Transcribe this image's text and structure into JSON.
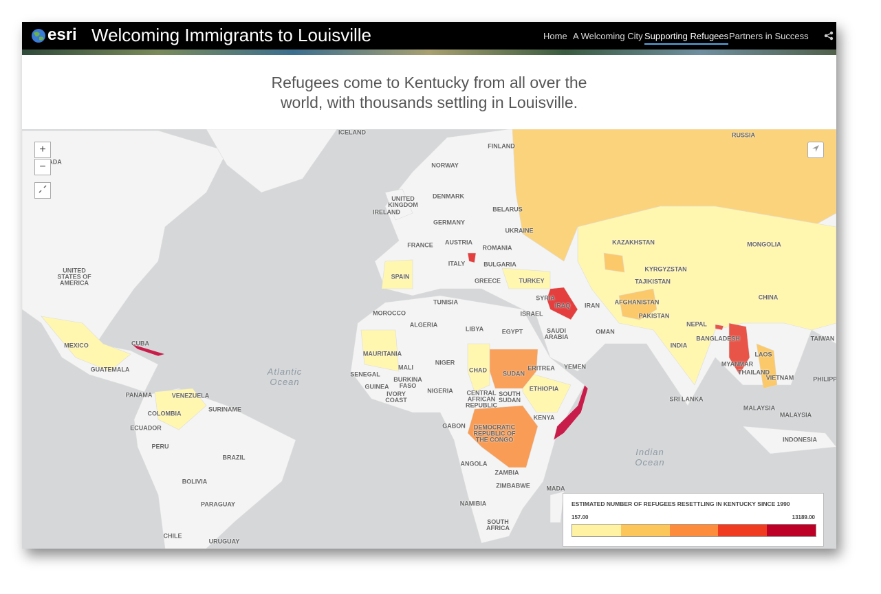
{
  "header": {
    "logo": "esri",
    "title": "Welcoming Immigrants to Louisville",
    "nav": [
      "Home",
      "A Welcoming City",
      "Supporting Refugees",
      "Partners in Success"
    ],
    "active_nav": 2
  },
  "subtitle": "Refugees come to Kentucky from all over the\nworld, with thousands settling in Louisville.",
  "map": {
    "zoom_controls": [
      "+",
      "−"
    ],
    "labels": [
      "ICELAND",
      "FINLAND",
      "RUSSIA",
      "NORWAY",
      "UNITED\nKINGDOM",
      "IRELAND",
      "DENMARK",
      "BELARUS",
      "GERMANY",
      "UKRAINE",
      "FRANCE",
      "AUSTRIA",
      "ROMANIA",
      "KAZAKHSTAN",
      "MONGOLIA",
      "ITALY",
      "BULGARIA",
      "KYRGYZSTAN",
      "UNITED\nSTATES OF\nAMERICA",
      "SPAIN",
      "GREECE",
      "TURKEY",
      "TAJIKISTAN",
      "TUNISIA",
      "SYRIA",
      "IRAQ",
      "IRAN",
      "AFGHANISTAN",
      "CHINA",
      "ISRAEL",
      "MOROCCO",
      "PAKISTAN",
      "ALGERIA",
      "LIBYA",
      "EGYPT",
      "SAUDI\nARABIA",
      "NEPAL",
      "BANGLADESH",
      "TAIWAN",
      "MEXICO",
      "CUBA",
      "INDIA",
      "OMAN",
      "MAURITANIA",
      "MALI",
      "NIGER",
      "CHAD",
      "SUDAN",
      "ERITREA",
      "YEMEN",
      "MYANMAR",
      "THAILAND",
      "LAOS",
      "VIETNAM",
      "PHILIPPI",
      "GUATEMALA",
      "SENEGAL",
      "BURKINA\nFASO",
      "GUINEA",
      "IVORY\nCOAST",
      "NIGERIA",
      "CENTRAL\nAFRICAN\nREPUBLIC",
      "SOUTH\nSUDAN",
      "ETHIOPIA",
      "PANAMA",
      "VENEZUELA",
      "SRI LANKA",
      "SURINAME",
      "COLOMBIA",
      "MALAYSIA",
      "MALAYSIA",
      "KENYA",
      "GABON",
      "DEMOCRATIC\nREPUBLIC OF\nTHE CONGO",
      "ECUADOR",
      "PERU",
      "INDONESIA",
      "BRAZIL",
      "ANGOLA",
      "ZAMBIA",
      "BOLIVIA",
      "ZIMBABWE",
      "MADA",
      "PARAGUAY",
      "NAMIBIA",
      "SOUTH\nAFRICA",
      "CHILE",
      "URUGUAY",
      "ADA"
    ],
    "ocean_labels": [
      "Atlantic\nOcean",
      "Indian\nOcean"
    ]
  },
  "legend": {
    "title": "ESTIMATED NUMBER OF REFUGEES RESETTLING IN KENTUCKY SINCE 1990",
    "min_label": "157.00",
    "max_label": "13189.00",
    "colors": [
      "#fff3a3",
      "#fdc65a",
      "#fd8d3c",
      "#f03b20",
      "#bd0026"
    ]
  }
}
